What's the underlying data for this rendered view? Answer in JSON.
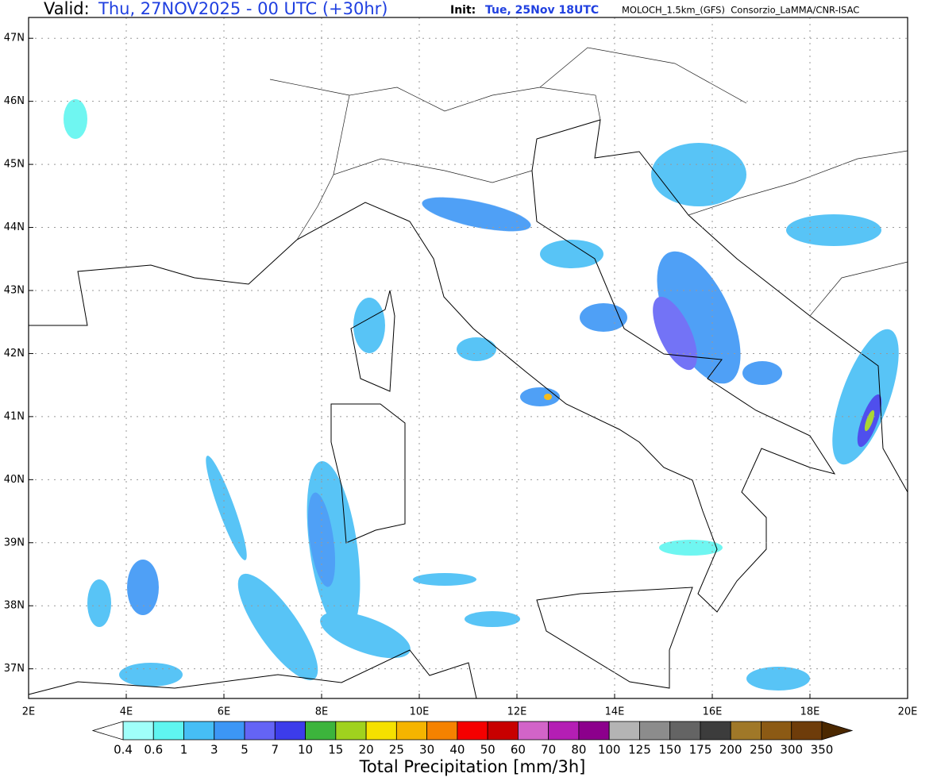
{
  "header": {
    "valid_label": "Valid:",
    "valid_time": "Thu, 27NOV2025 - 00 UTC (+30hr)",
    "init_label": "Init:",
    "init_time": "Tue, 25Nov 18UTC",
    "model": "MOLOCH_1.5km_(GFS)  Consorzio_LaMMA/CNR-ISAC"
  },
  "map": {
    "lon_range": [
      2,
      20
    ],
    "lat_range": [
      36.53,
      47.33
    ],
    "lon_ticks": [
      {
        "value": 2,
        "label": "2E"
      },
      {
        "value": 4,
        "label": "4E"
      },
      {
        "value": 6,
        "label": "6E"
      },
      {
        "value": 8,
        "label": "8E"
      },
      {
        "value": 10,
        "label": "10E"
      },
      {
        "value": 12,
        "label": "12E"
      },
      {
        "value": 14,
        "label": "14E"
      },
      {
        "value": 16,
        "label": "16E"
      },
      {
        "value": 18,
        "label": "18E"
      },
      {
        "value": 20,
        "label": "20E"
      }
    ],
    "lat_ticks": [
      {
        "value": 37,
        "label": "37N"
      },
      {
        "value": 38,
        "label": "38N"
      },
      {
        "value": 39,
        "label": "39N"
      },
      {
        "value": 40,
        "label": "40N"
      },
      {
        "value": 41,
        "label": "41N"
      },
      {
        "value": 42,
        "label": "42N"
      },
      {
        "value": 43,
        "label": "43N"
      },
      {
        "value": 44,
        "label": "44N"
      },
      {
        "value": 45,
        "label": "45N"
      },
      {
        "value": 46,
        "label": "46N"
      },
      {
        "value": 47,
        "label": "47N"
      }
    ]
  },
  "colorbar": {
    "title": "Total Precipitation [mm/3h]",
    "labels": [
      0.4,
      0.6,
      1,
      3,
      5,
      7,
      10,
      15,
      20,
      25,
      30,
      40,
      50,
      60,
      70,
      80,
      100,
      125,
      150,
      175,
      200,
      250,
      300,
      350
    ],
    "colors": [
      "#a0fffa",
      "#5ff5f0",
      "#46bef5",
      "#3c96f5",
      "#6464f5",
      "#3c3ceb",
      "#3cb43c",
      "#a0d21e",
      "#f5e100",
      "#f5b400",
      "#f58200",
      "#f50000",
      "#c80000",
      "#d264c8",
      "#b41eb4",
      "#8c008c",
      "#b4b4b4",
      "#8c8c8c",
      "#646464",
      "#3c3c3c",
      "#a07828",
      "#8c5a14",
      "#6e3c0a"
    ],
    "under_color": "#ffffff",
    "over_color": "#4b2800"
  }
}
